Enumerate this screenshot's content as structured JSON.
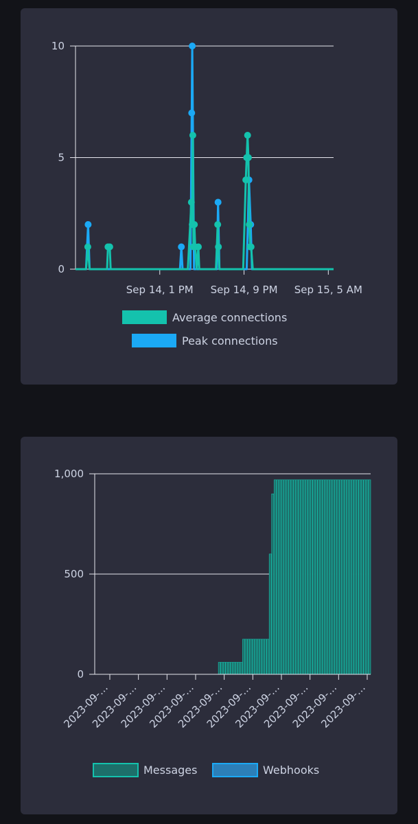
{
  "charts": [
    {
      "colors": {
        "avg": "#14c2ad",
        "peak": "#1ba9f5",
        "grid": "#e6e6ee",
        "axis": "#e6e6ee"
      }
    },
    {
      "colors": {
        "messages_fill": "#1d6f6a",
        "messages_border": "#14c2ad",
        "webhooks_fill": "#2c7fb8",
        "webhooks_border": "#1ba9f5",
        "grid": "#e6e6ee"
      }
    }
  ],
  "chart_data": [
    {
      "type": "line",
      "title": "",
      "xlabel": "",
      "ylabel": "",
      "x_axis": {
        "type": "time",
        "min": "2023-09-14 05:00",
        "max": "2023-09-15 05:30"
      },
      "ylim": [
        0,
        10
      ],
      "yticks": [
        0,
        5,
        10
      ],
      "xtick_labels": [
        {
          "at": "2023-09-14 13:00",
          "label": "Sep 14, 1 PM"
        },
        {
          "at": "2023-09-14 21:00",
          "label": "Sep 14, 9 PM"
        },
        {
          "at": "2023-09-15 05:00",
          "label": "Sep 15, 5 AM"
        }
      ],
      "grid": true,
      "legend": {
        "placement": "bottom",
        "layout": "stacked"
      },
      "series": [
        {
          "name": "Average connections",
          "points": [
            [
              "2023-09-14 06:00",
              0
            ],
            [
              "2023-09-14 06:10",
              1
            ],
            [
              "2023-09-14 06:20",
              0
            ],
            [
              "2023-09-14 08:00",
              0
            ],
            [
              "2023-09-14 08:05",
              1
            ],
            [
              "2023-09-14 08:15",
              1
            ],
            [
              "2023-09-14 08:20",
              0
            ],
            [
              "2023-09-14 15:40",
              0
            ],
            [
              "2023-09-14 16:00",
              3
            ],
            [
              "2023-09-14 16:05",
              2
            ],
            [
              "2023-09-14 16:08",
              6
            ],
            [
              "2023-09-14 16:12",
              1
            ],
            [
              "2023-09-14 16:17",
              2
            ],
            [
              "2023-09-14 16:22",
              1
            ],
            [
              "2023-09-14 16:30",
              0
            ],
            [
              "2023-09-14 16:40",
              1
            ],
            [
              "2023-09-14 16:45",
              0
            ],
            [
              "2023-09-14 18:20",
              0
            ],
            [
              "2023-09-14 18:30",
              2
            ],
            [
              "2023-09-14 18:34",
              1
            ],
            [
              "2023-09-14 18:40",
              0
            ],
            [
              "2023-09-14 20:55",
              0
            ],
            [
              "2023-09-14 21:10",
              4
            ],
            [
              "2023-09-14 21:15",
              5
            ],
            [
              "2023-09-14 21:20",
              6
            ],
            [
              "2023-09-14 21:25",
              5
            ],
            [
              "2023-09-14 21:30",
              2
            ],
            [
              "2023-09-14 21:35",
              1
            ],
            [
              "2023-09-14 21:40",
              1
            ],
            [
              "2023-09-14 21:50",
              0
            ]
          ]
        },
        {
          "name": "Peak connections",
          "points": [
            [
              "2023-09-14 06:00",
              0
            ],
            [
              "2023-09-14 06:12",
              2
            ],
            [
              "2023-09-14 06:20",
              0
            ],
            [
              "2023-09-14 14:55",
              0
            ],
            [
              "2023-09-14 15:03",
              1
            ],
            [
              "2023-09-14 15:10",
              0
            ],
            [
              "2023-09-14 15:55",
              0
            ],
            [
              "2023-09-14 16:02",
              7
            ],
            [
              "2023-09-14 16:05",
              10
            ],
            [
              "2023-09-14 16:15",
              0
            ],
            [
              "2023-09-14 18:25",
              0
            ],
            [
              "2023-09-14 18:32",
              3
            ],
            [
              "2023-09-14 18:40",
              0
            ],
            [
              "2023-09-14 21:15",
              0
            ],
            [
              "2023-09-14 21:28",
              4
            ],
            [
              "2023-09-14 21:38",
              2
            ],
            [
              "2023-09-14 21:45",
              0
            ]
          ]
        }
      ]
    },
    {
      "type": "bar",
      "title": "",
      "xlabel": "",
      "ylabel": "",
      "stacked": true,
      "ylim": [
        0,
        1000
      ],
      "yticks": [
        0,
        500,
        1000
      ],
      "ytick_labels": [
        "0",
        "500",
        "1,000"
      ],
      "xtick_labels": [
        "2023-09-…",
        "2023-09-…",
        "2023-09-…",
        "2023-09-…",
        "2023-09-…",
        "2023-09-…",
        "2023-09-…",
        "2023-09-…",
        "2023-09-…",
        "2023-09-…"
      ],
      "grid": true,
      "legend": {
        "placement": "bottom",
        "layout": "row"
      },
      "bar_count": 114,
      "series": [
        {
          "name": "Messages",
          "segments": [
            {
              "from_bar": 0,
              "to_bar": 50,
              "value": 0
            },
            {
              "from_bar": 51,
              "to_bar": 60,
              "value": 60
            },
            {
              "from_bar": 61,
              "to_bar": 71,
              "value": 175
            },
            {
              "from_bar": 72,
              "to_bar": 72,
              "value": 600
            },
            {
              "from_bar": 73,
              "to_bar": 73,
              "value": 900
            },
            {
              "from_bar": 74,
              "to_bar": 113,
              "value": 970
            }
          ]
        },
        {
          "name": "Webhooks",
          "segments": [
            {
              "from_bar": 0,
              "to_bar": 113,
              "value": 0
            }
          ]
        }
      ]
    }
  ]
}
